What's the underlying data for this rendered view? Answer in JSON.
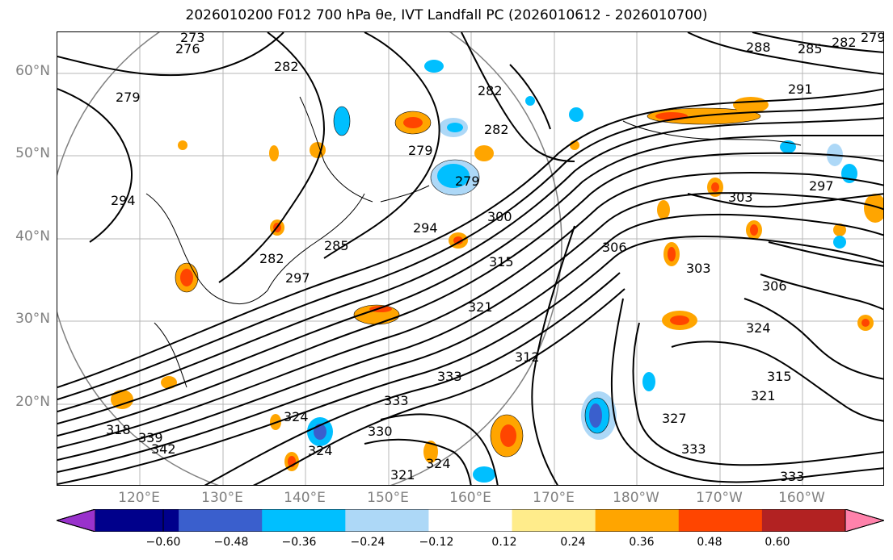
{
  "title": "2026010200 F012 700 hPa θe, IVT Landfall PC (2026010612 - 2026010700)",
  "lat_labels": [
    "60°N",
    "50°N",
    "40°N",
    "30°N",
    "20°N"
  ],
  "lon_labels": [
    "120°E",
    "130°E",
    "140°E",
    "150°E",
    "160°E",
    "170°E",
    "180°W",
    "170°W",
    "160°W"
  ],
  "colorbar": {
    "ticks": [
      "−0.60",
      "−0.48",
      "−0.36",
      "−0.24",
      "−0.12",
      "0.12",
      "0.24",
      "0.36",
      "0.48",
      "0.60"
    ],
    "colors": [
      "#9932CC",
      "#00008B",
      "#3A5FCD",
      "#00BFFF",
      "#ADD8F7",
      "#FFFFFF",
      "#FFEC8B",
      "#FFA500",
      "#FF4500",
      "#B22222",
      "#FF82AB"
    ]
  },
  "contour_labels": [
    "273",
    "276",
    "279",
    "282",
    "285",
    "288",
    "291",
    "294",
    "297",
    "300",
    "303",
    "306",
    "312",
    "315",
    "318",
    "321",
    "324",
    "327",
    "330",
    "333",
    "339",
    "342"
  ],
  "contour_label_instances": [
    {
      "text": "273"
    },
    {
      "text": "276"
    },
    {
      "text": "279"
    },
    {
      "text": "282"
    },
    {
      "text": "279"
    },
    {
      "text": "282"
    },
    {
      "text": "288"
    },
    {
      "text": "285"
    },
    {
      "text": "282"
    },
    {
      "text": "279"
    },
    {
      "text": "291"
    },
    {
      "text": "294"
    },
    {
      "text": "279"
    },
    {
      "text": "282"
    },
    {
      "text": "294"
    },
    {
      "text": "300"
    },
    {
      "text": "285"
    },
    {
      "text": "282"
    },
    {
      "text": "315"
    },
    {
      "text": "306"
    },
    {
      "text": "303"
    },
    {
      "text": "303"
    },
    {
      "text": "306"
    },
    {
      "text": "297"
    },
    {
      "text": "297"
    },
    {
      "text": "321"
    },
    {
      "text": "312"
    },
    {
      "text": "333"
    },
    {
      "text": "333"
    },
    {
      "text": "330"
    },
    {
      "text": "324"
    },
    {
      "text": "324"
    },
    {
      "text": "327"
    },
    {
      "text": "333"
    },
    {
      "text": "333"
    },
    {
      "text": "321"
    },
    {
      "text": "324"
    },
    {
      "text": "318"
    },
    {
      "text": "339"
    },
    {
      "text": "342"
    },
    {
      "text": "324"
    },
    {
      "text": "315"
    },
    {
      "text": "321"
    }
  ]
}
